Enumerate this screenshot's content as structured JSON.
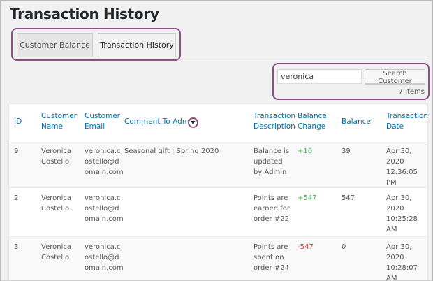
{
  "page": {
    "title": "Transaction History"
  },
  "tabs": [
    {
      "label": "Customer Balance"
    },
    {
      "label": "Transaction History"
    }
  ],
  "search": {
    "value": "veronica",
    "button_label": "Search Customer",
    "items_count": "7 items"
  },
  "table": {
    "headers": {
      "id": "ID",
      "name": [
        "Customer",
        "Name"
      ],
      "email": [
        "Customer",
        "Email"
      ],
      "comment": "Comment To Admin",
      "desc": [
        "Transaction",
        "Description"
      ],
      "change": [
        "Balance",
        "Change"
      ],
      "balance": "Balance",
      "date": [
        "Transaction",
        "Date"
      ]
    },
    "rows": [
      {
        "id": "9",
        "name": [
          "Veronica",
          "Costello"
        ],
        "email": [
          "veronica.c",
          "ostello@d",
          "omain.com"
        ],
        "comment": "Seasonal gift | Spring 2020",
        "desc": [
          "Balance is",
          "updated",
          "by Admin"
        ],
        "change": "+10",
        "balance": "39",
        "date": [
          "Apr 30,",
          "2020",
          "12:36:05",
          "PM"
        ]
      },
      {
        "id": "2",
        "name": [
          "Veronica",
          "Costello"
        ],
        "email": [
          "veronica.c",
          "ostello@d",
          "omain.com"
        ],
        "comment": "",
        "desc": [
          "Points are",
          "earned for",
          "order #22"
        ],
        "change": "+547",
        "balance": "547",
        "date": [
          "Apr 30,",
          "2020",
          "10:25:28",
          "AM"
        ]
      },
      {
        "id": "3",
        "name": [
          "Veronica",
          "Costello"
        ],
        "email": [
          "veronica.c",
          "ostello@d",
          "omain.com"
        ],
        "comment": "",
        "desc": [
          "Points are",
          "spent on",
          "order #24"
        ],
        "change": "-547",
        "balance": "0",
        "date": [
          "Apr 30,",
          "2020",
          "10:28:07",
          "AM"
        ]
      }
    ]
  },
  "colors": {
    "accent": "#0073aa",
    "highlight": "#8a4f84",
    "positive": "#46b450",
    "negative": "#dc3232"
  },
  "icons": {
    "sort": "triangle-down-icon"
  }
}
